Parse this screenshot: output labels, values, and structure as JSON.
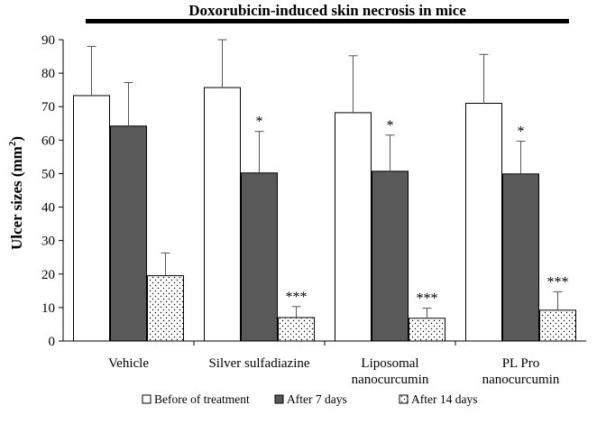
{
  "chart_data": {
    "type": "bar",
    "title": "Doxorubicin-induced skin necrosis in mice",
    "ylabel": "Ulcer sizes (mm",
    "ylabel_superscript": "2",
    "ylabel_suffix": ")",
    "xlabel": "",
    "ylim": [
      0,
      90
    ],
    "yticks": [
      0,
      10,
      20,
      30,
      40,
      50,
      60,
      70,
      80,
      90
    ],
    "categories": [
      [
        "Vehicle"
      ],
      [
        "Silver sulfadiazine"
      ],
      [
        "Liposomal",
        "nanocurcumin"
      ],
      [
        "PL Pro",
        "nanocurcumin"
      ]
    ],
    "series": [
      {
        "name": "Before of treatment",
        "values": [
          73.3,
          75.7,
          68.2,
          71.0
        ],
        "error": [
          14.7,
          14.3,
          17.0,
          14.6
        ],
        "significance": [
          "",
          "",
          "",
          ""
        ],
        "fill": "#ffffff",
        "pattern": "none"
      },
      {
        "name": "After 7 days",
        "values": [
          64.2,
          50.2,
          50.7,
          49.9
        ],
        "error": [
          13.0,
          12.4,
          10.8,
          9.8
        ],
        "significance": [
          "",
          "*",
          "*",
          "*"
        ],
        "fill": "#595959",
        "pattern": "none"
      },
      {
        "name": "After 14 days",
        "values": [
          19.5,
          7.0,
          6.8,
          9.2
        ],
        "error": [
          6.8,
          3.3,
          3.0,
          5.5
        ],
        "significance": [
          "",
          "***",
          "***",
          "***"
        ],
        "fill": "#ffffff",
        "pattern": "dots"
      }
    ],
    "legend_position": "bottom",
    "grid": false
  }
}
